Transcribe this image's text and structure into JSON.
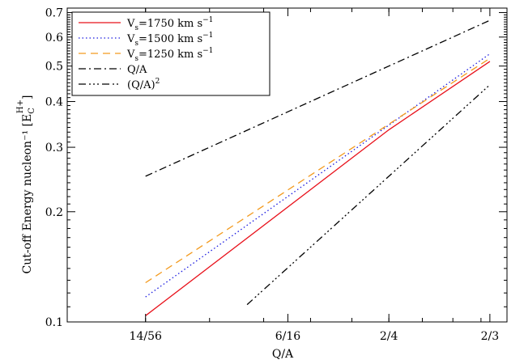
{
  "chart_data": {
    "type": "line",
    "xscale": "log",
    "yscale": "log",
    "xlabel": "Q/A",
    "ylabel": "Cut-off Energy nucleon⁻¹ [E",
    "ylabel_sub": "C",
    "ylabel_sup": "H+",
    "ylabel_end": "]",
    "xlim": [
      0.2,
      0.7
    ],
    "ylim": [
      0.1,
      0.72
    ],
    "xticks": [
      {
        "value": 0.25,
        "label": "14/56"
      },
      {
        "value": 0.375,
        "label": "6/16"
      },
      {
        "value": 0.5,
        "label": "2/4"
      },
      {
        "value": 0.6667,
        "label": "2/3"
      }
    ],
    "yticks": [
      {
        "value": 0.1,
        "label": "0.1"
      },
      {
        "value": 0.2,
        "label": "0.2"
      },
      {
        "value": 0.3,
        "label": "0.3"
      },
      {
        "value": 0.4,
        "label": "0.4"
      },
      {
        "value": 0.5,
        "label": "0.5"
      },
      {
        "value": 0.6,
        "label": "0.6"
      },
      {
        "value": 0.7,
        "label": "0.7"
      }
    ],
    "grid": false,
    "legend_position": "top-left",
    "series": [
      {
        "name": "V_s=1750 km s^-1",
        "label_base": "V",
        "label_sub": "s",
        "label_mid": "=1750 km s",
        "label_sup": "−1",
        "color": "#e8101a",
        "dash": "none",
        "points": [
          [
            0.25,
            0.104
          ],
          [
            0.5,
            0.335
          ],
          [
            0.6667,
            0.515
          ]
        ]
      },
      {
        "name": "V_s=1500 km s^-1",
        "label_base": "V",
        "label_sub": "s",
        "label_mid": "=1500 km s",
        "label_sup": "−1",
        "color": "#1a1ae0",
        "dash": "1.5,3",
        "points": [
          [
            0.25,
            0.117
          ],
          [
            0.6667,
            0.54
          ]
        ]
      },
      {
        "name": "V_s=1250 km s^-1",
        "label_base": "V",
        "label_sub": "s",
        "label_mid": "=1250 km s",
        "label_sup": "−1",
        "color": "#f39a1e",
        "dash": "9,6",
        "points": [
          [
            0.25,
            0.128
          ],
          [
            0.6667,
            0.525
          ]
        ]
      },
      {
        "name": "Q/A",
        "label_base": "Q/A",
        "color": "#000000",
        "dash": "9,4,2,4",
        "points": [
          [
            0.25,
            0.25
          ],
          [
            0.6667,
            0.6667
          ]
        ]
      },
      {
        "name": "(Q/A)^2",
        "label_base": "(Q/A)",
        "label_sup": "2",
        "color": "#000000",
        "dash": "9,4,2,3,2,3,2,4",
        "points": [
          [
            0.3339,
            0.1115
          ],
          [
            0.6667,
            0.4444
          ]
        ]
      }
    ]
  }
}
